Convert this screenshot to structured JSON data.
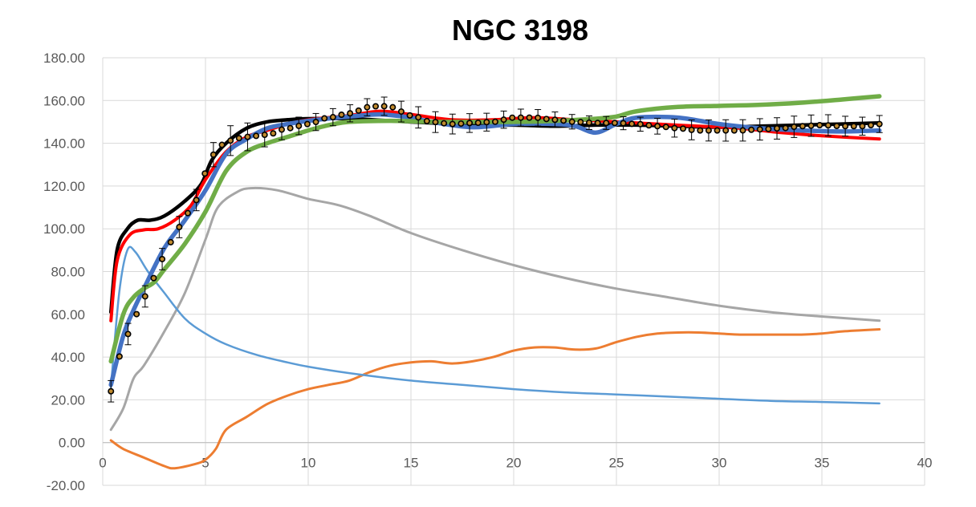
{
  "chart_data": {
    "type": "line",
    "title": "NGC 3198",
    "xlabel": "",
    "ylabel": "",
    "xlim": [
      0,
      40
    ],
    "ylim": [
      -20,
      180
    ],
    "x_ticks": [
      "0",
      "5",
      "10",
      "15",
      "20",
      "25",
      "30",
      "35",
      "40"
    ],
    "y_ticks": [
      "-20.00",
      "0.00",
      "20.00",
      "40.00",
      "60.00",
      "80.00",
      "100.00",
      "120.00",
      "140.00",
      "160.00",
      "180.00"
    ],
    "grid": true,
    "legend": "none",
    "series": [
      {
        "key": "gray",
        "color": "#A6A6A6",
        "width": 3,
        "points": [
          [
            0.4,
            6
          ],
          [
            1,
            16
          ],
          [
            1.5,
            30
          ],
          [
            2,
            36
          ],
          [
            3,
            52
          ],
          [
            4,
            70
          ],
          [
            5,
            95
          ],
          [
            5.6,
            110
          ],
          [
            6.5,
            117
          ],
          [
            7.2,
            119
          ],
          [
            8.5,
            118
          ],
          [
            10,
            114
          ],
          [
            11.5,
            111
          ],
          [
            13,
            106
          ],
          [
            15,
            98
          ],
          [
            17.5,
            90
          ],
          [
            20,
            83
          ],
          [
            22.5,
            77
          ],
          [
            25,
            72
          ],
          [
            27.5,
            68
          ],
          [
            30,
            64
          ],
          [
            32.5,
            61
          ],
          [
            35,
            59
          ],
          [
            37.8,
            57
          ]
        ]
      },
      {
        "key": "orange",
        "color": "#ED7D31",
        "width": 3,
        "points": [
          [
            0.4,
            1
          ],
          [
            1,
            -3
          ],
          [
            2,
            -7
          ],
          [
            3,
            -11
          ],
          [
            3.5,
            -12
          ],
          [
            4.5,
            -10
          ],
          [
            5,
            -8
          ],
          [
            5.5,
            -3
          ],
          [
            6,
            6
          ],
          [
            7,
            12
          ],
          [
            8,
            18
          ],
          [
            9,
            22
          ],
          [
            10,
            25
          ],
          [
            11,
            27
          ],
          [
            12,
            29
          ],
          [
            13,
            33
          ],
          [
            14,
            36
          ],
          [
            15,
            37.5
          ],
          [
            16,
            38
          ],
          [
            17,
            37
          ],
          [
            18,
            38
          ],
          [
            19,
            40
          ],
          [
            20,
            43
          ],
          [
            21,
            44.5
          ],
          [
            22,
            44.5
          ],
          [
            23,
            43.5
          ],
          [
            24,
            44
          ],
          [
            25,
            47
          ],
          [
            26,
            49.5
          ],
          [
            27,
            51
          ],
          [
            28,
            51.5
          ],
          [
            29,
            51.5
          ],
          [
            30,
            51
          ],
          [
            31,
            50.5
          ],
          [
            32,
            50.5
          ],
          [
            33,
            50.5
          ],
          [
            34,
            50.5
          ],
          [
            35,
            51
          ],
          [
            36,
            52
          ],
          [
            37.8,
            53
          ]
        ]
      },
      {
        "key": "lightblue",
        "color": "#5B9BD5",
        "width": 2.5,
        "points": [
          [
            0.4,
            26
          ],
          [
            0.8,
            70
          ],
          [
            1.2,
            90
          ],
          [
            1.6,
            89
          ],
          [
            2.2,
            80
          ],
          [
            3,
            70
          ],
          [
            4,
            58
          ],
          [
            5,
            51
          ],
          [
            6,
            46
          ],
          [
            7.5,
            41
          ],
          [
            9,
            37.5
          ],
          [
            10,
            35.5
          ],
          [
            12,
            32.5
          ],
          [
            15,
            29
          ],
          [
            17.5,
            27
          ],
          [
            20,
            25
          ],
          [
            22.5,
            23.5
          ],
          [
            25,
            22.5
          ],
          [
            27.5,
            21.5
          ],
          [
            30,
            20.5
          ],
          [
            32.5,
            19.5
          ],
          [
            35,
            19
          ],
          [
            37.8,
            18.3
          ]
        ]
      },
      {
        "key": "black",
        "color": "#000000",
        "width": 4.5,
        "points": [
          [
            0.4,
            61
          ],
          [
            0.7,
            90
          ],
          [
            1.2,
            100
          ],
          [
            1.7,
            104
          ],
          [
            2.3,
            104
          ],
          [
            3,
            106
          ],
          [
            4,
            113
          ],
          [
            4.8,
            121
          ],
          [
            5.3,
            132
          ],
          [
            6,
            140
          ],
          [
            7,
            147
          ],
          [
            8,
            150
          ],
          [
            9,
            151
          ],
          [
            10,
            151.5
          ],
          [
            12,
            151.5
          ],
          [
            14,
            150.5
          ],
          [
            16,
            149.5
          ],
          [
            18,
            148.5
          ],
          [
            20,
            148.5
          ],
          [
            22,
            148
          ],
          [
            24,
            148.5
          ],
          [
            26,
            148.5
          ],
          [
            28,
            148
          ],
          [
            30,
            147.5
          ],
          [
            32,
            148
          ],
          [
            34,
            148.5
          ],
          [
            37.8,
            149.5
          ]
        ]
      },
      {
        "key": "red",
        "color": "#FF0000",
        "width": 4,
        "points": [
          [
            0.4,
            57
          ],
          [
            0.7,
            85
          ],
          [
            1.3,
            97
          ],
          [
            2,
            99.5
          ],
          [
            2.7,
            100
          ],
          [
            3.5,
            104
          ],
          [
            4.3,
            111
          ],
          [
            5,
            123
          ],
          [
            6,
            136
          ],
          [
            7,
            143
          ],
          [
            8,
            146
          ],
          [
            9,
            149
          ],
          [
            10,
            151
          ],
          [
            12,
            153
          ],
          [
            13.5,
            155
          ],
          [
            15,
            153.5
          ],
          [
            17,
            151
          ],
          [
            19,
            151
          ],
          [
            21,
            152
          ],
          [
            23,
            151
          ],
          [
            25,
            150
          ],
          [
            27,
            149
          ],
          [
            29,
            148
          ],
          [
            31,
            147
          ],
          [
            33,
            145
          ],
          [
            35,
            143.5
          ],
          [
            37.8,
            142
          ]
        ]
      },
      {
        "key": "blue",
        "color": "#4472C4",
        "width": 5.5,
        "points": [
          [
            0.4,
            27
          ],
          [
            1,
            50
          ],
          [
            1.5,
            62
          ],
          [
            2,
            72
          ],
          [
            3,
            91
          ],
          [
            4,
            104
          ],
          [
            5,
            118
          ],
          [
            6,
            135
          ],
          [
            7,
            142
          ],
          [
            8,
            147
          ],
          [
            9,
            149
          ],
          [
            10,
            150.5
          ],
          [
            12,
            152.5
          ],
          [
            13.5,
            153.5
          ],
          [
            15,
            152
          ],
          [
            16,
            150
          ],
          [
            18,
            147.5
          ],
          [
            20,
            149
          ],
          [
            22,
            149
          ],
          [
            23,
            148
          ],
          [
            24,
            145
          ],
          [
            25,
            149
          ],
          [
            26,
            152
          ],
          [
            28,
            152
          ],
          [
            30,
            149
          ],
          [
            32,
            147
          ],
          [
            34,
            146
          ],
          [
            36,
            145.5
          ],
          [
            37.8,
            146
          ]
        ]
      },
      {
        "key": "green",
        "color": "#70AD47",
        "width": 5.5,
        "points": [
          [
            0.4,
            38
          ],
          [
            1,
            60
          ],
          [
            1.5,
            68
          ],
          [
            2,
            72
          ],
          [
            2.5,
            75
          ],
          [
            3,
            81
          ],
          [
            4,
            93
          ],
          [
            5,
            108
          ],
          [
            6,
            127
          ],
          [
            7,
            136
          ],
          [
            8,
            140
          ],
          [
            9,
            143
          ],
          [
            10,
            146
          ],
          [
            11,
            148.5
          ],
          [
            12,
            150
          ],
          [
            14,
            150.5
          ],
          [
            16,
            150
          ],
          [
            18,
            150
          ],
          [
            20,
            150
          ],
          [
            22,
            150.5
          ],
          [
            24,
            151.5
          ],
          [
            25,
            152.5
          ],
          [
            26,
            155
          ],
          [
            28,
            157
          ],
          [
            30,
            157.5
          ],
          [
            32,
            158
          ],
          [
            34,
            159
          ],
          [
            36,
            160.5
          ],
          [
            37.8,
            162
          ]
        ]
      }
    ],
    "observed": {
      "key": "observed",
      "color": "#000000",
      "fill": "#C08A2D",
      "x_start": 0.4,
      "x_end": 37.8,
      "count": 91,
      "errorbar_count": 44,
      "points": [
        [
          0.4,
          24
        ],
        [
          1,
          45
        ],
        [
          1.5,
          58
        ],
        [
          2,
          68
        ],
        [
          2.5,
          77
        ],
        [
          3,
          87
        ],
        [
          3.5,
          97
        ],
        [
          4,
          106
        ],
        [
          4.5,
          113
        ],
        [
          5,
          126
        ],
        [
          5.5,
          136
        ],
        [
          6,
          141
        ],
        [
          7,
          143
        ],
        [
          8,
          144
        ],
        [
          9,
          147
        ],
        [
          10,
          149
        ],
        [
          11,
          152
        ],
        [
          12,
          154
        ],
        [
          13,
          157
        ],
        [
          13.5,
          157.5
        ],
        [
          14,
          157
        ],
        [
          15,
          153
        ],
        [
          16,
          150
        ],
        [
          17,
          149
        ],
        [
          18,
          149.5
        ],
        [
          19,
          150
        ],
        [
          20,
          152
        ],
        [
          21,
          152
        ],
        [
          22,
          151
        ],
        [
          23,
          150
        ],
        [
          24,
          149.5
        ],
        [
          25,
          149.5
        ],
        [
          26,
          149
        ],
        [
          27,
          148
        ],
        [
          28,
          147
        ],
        [
          29,
          146
        ],
        [
          30,
          146
        ],
        [
          31,
          146
        ],
        [
          32,
          146.5
        ],
        [
          33,
          147
        ],
        [
          34,
          148
        ],
        [
          35,
          148.5
        ],
        [
          36,
          148
        ],
        [
          37,
          148
        ],
        [
          37.8,
          149
        ]
      ],
      "errors": [
        [
          0.4,
          5
        ],
        [
          3,
          5
        ],
        [
          5,
          5
        ],
        [
          6,
          7
        ],
        [
          10,
          4
        ],
        [
          13,
          4
        ],
        [
          15,
          5
        ],
        [
          20,
          4
        ],
        [
          25,
          3
        ],
        [
          30,
          5
        ],
        [
          35,
          5
        ],
        [
          37.8,
          4
        ]
      ]
    }
  }
}
